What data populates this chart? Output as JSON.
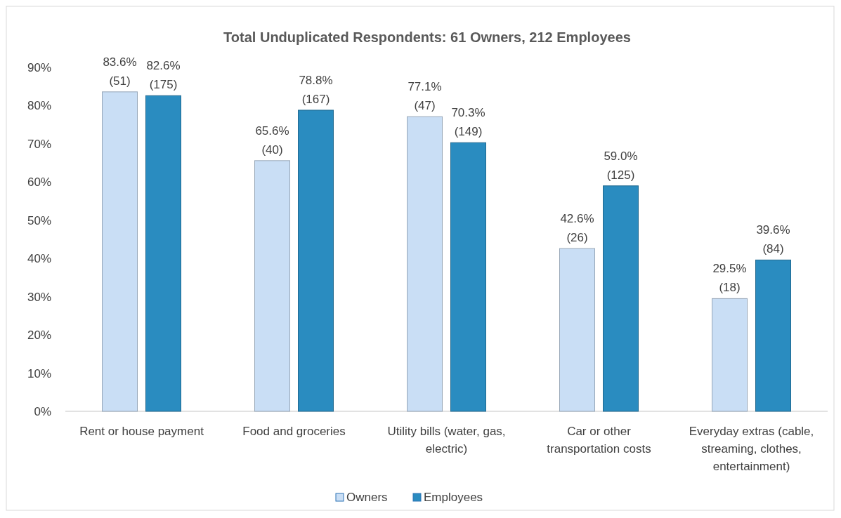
{
  "chart_data": {
    "type": "bar",
    "title": "Total Unduplicated Respondents: 61 Owners, 212 Employees",
    "categories": [
      "Rent or house payment",
      "Food and groceries",
      "Utility bills (water, gas, electric)",
      "Car or other transportation costs",
      "Everyday extras (cable, streaming, clothes, entertainment)"
    ],
    "series": [
      {
        "name": "Owners",
        "color": "#c9def5",
        "values": [
          83.6,
          65.6,
          77.1,
          42.6,
          29.5
        ],
        "value_labels": [
          "83.6%\n(51)",
          "65.6%\n(40)",
          "77.1%\n(47)",
          "42.6%\n(26)",
          "29.5%\n(18)"
        ]
      },
      {
        "name": "Employees",
        "color": "#2a8cc0",
        "values": [
          82.6,
          78.8,
          70.3,
          59.0,
          39.6
        ],
        "value_labels": [
          "82.6%\n(175)",
          "78.8%\n(167)",
          "70.3%\n(149)",
          "59.0%\n(125)",
          "39.6%\n(84)"
        ]
      }
    ],
    "ylim": [
      0,
      90
    ],
    "yticks": [
      {
        "value": 0,
        "label": "0%"
      },
      {
        "value": 10,
        "label": "10%"
      },
      {
        "value": 20,
        "label": "20%"
      },
      {
        "value": 30,
        "label": "30%"
      },
      {
        "value": 40,
        "label": "40%"
      },
      {
        "value": 50,
        "label": "50%"
      },
      {
        "value": 60,
        "label": "60%"
      },
      {
        "value": 70,
        "label": "70%"
      },
      {
        "value": 80,
        "label": "80%"
      },
      {
        "value": 90,
        "label": "90%"
      }
    ],
    "grid": false,
    "legend": "bottom"
  }
}
